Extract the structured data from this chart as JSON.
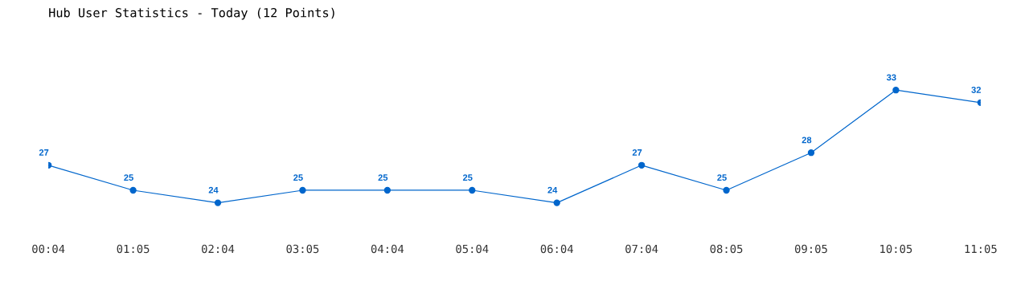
{
  "chart_data": {
    "type": "line",
    "title": "Hub User Statistics - Today (12 Points)",
    "categories": [
      "00:04",
      "01:05",
      "02:04",
      "03:05",
      "04:04",
      "05:04",
      "06:04",
      "07:04",
      "08:05",
      "09:05",
      "10:05",
      "11:05"
    ],
    "series": [
      {
        "color": "#0066cc",
        "values": [
          27,
          25,
          24,
          25,
          25,
          25,
          24,
          27,
          25,
          28,
          33,
          32
        ]
      }
    ],
    "data_labels": true,
    "marker": "circle",
    "line_style": "solid",
    "grid": false,
    "legend": false,
    "tick_labels": "x"
  }
}
